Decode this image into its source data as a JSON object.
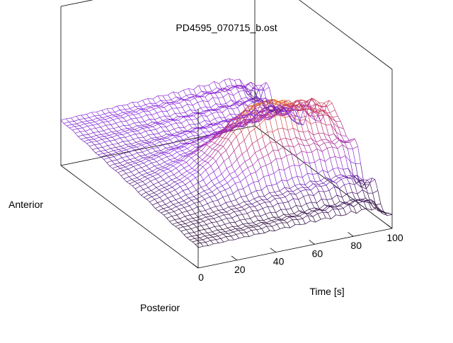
{
  "chart_data": {
    "type": "surface-3d-wireframe",
    "title": "PD4595_070715_b.ost",
    "xlabel": "Time [s]",
    "xlim": [
      0,
      100
    ],
    "x_ticks": [
      0,
      20,
      40,
      60,
      80,
      100
    ],
    "y_category_labels": [
      "Anterior",
      "Posterior"
    ],
    "grid": false,
    "legend": "none",
    "colormap": {
      "low": "#2a0a3a",
      "mid_low": "#8a2be2",
      "mid": "#c0306a",
      "mid_high": "#e8722c",
      "high": "#f5e04a"
    }
  }
}
